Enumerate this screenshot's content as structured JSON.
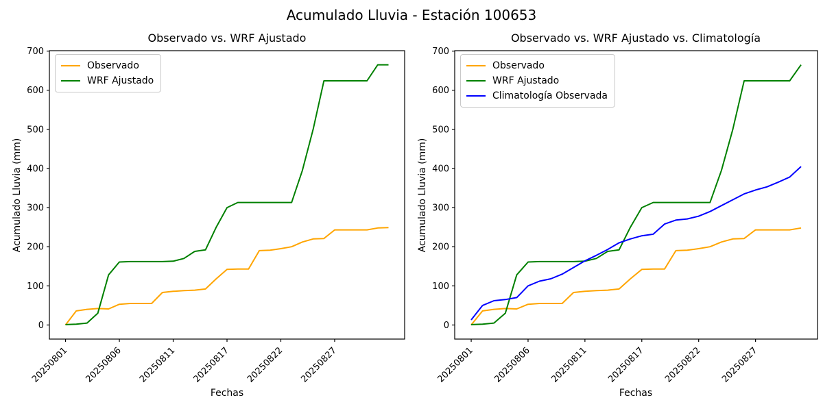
{
  "suptitle": "Acumulado Lluvia - Estación 100653",
  "chart_data": [
    {
      "type": "line",
      "title": "Observado vs. WRF Ajustado",
      "xlabel": "Fechas",
      "ylabel": "Acumulado Lluvia (mm)",
      "legend_position": "upper-left",
      "grid": false,
      "ylim": [
        -36,
        701
      ],
      "yticks": [
        0,
        100,
        200,
        300,
        400,
        500,
        600,
        700
      ],
      "xticks": {
        "indices": [
          0,
          5,
          10,
          15,
          20,
          25
        ],
        "labels": [
          "20250801",
          "20250806",
          "20250811",
          "20250817",
          "20250822",
          "20250827"
        ]
      },
      "x": [
        "20250801",
        "20250802",
        "20250803",
        "20250804",
        "20250805",
        "20250806",
        "20250807",
        "20250808",
        "20250809",
        "20250810",
        "20250811",
        "20250812",
        "20250813",
        "20250814",
        "20250815",
        "20250817",
        "20250818",
        "20250819",
        "20250820",
        "20250821",
        "20250822",
        "20250823",
        "20250824",
        "20250825",
        "20250826",
        "20250827",
        "20250828",
        "20250829",
        "20250830",
        "20250831",
        "20250901"
      ],
      "series": [
        {
          "name": "Observado",
          "color": "#FFA500",
          "values": [
            0,
            36,
            40,
            42,
            41,
            53,
            55,
            55,
            55,
            83,
            86,
            88,
            89,
            92,
            118,
            142,
            143,
            143,
            190,
            191,
            195,
            200,
            212,
            220,
            221,
            243,
            243,
            243,
            243,
            248,
            249
          ]
        },
        {
          "name": "WRF Ajustado",
          "color": "#008000",
          "values": [
            1,
            2,
            5,
            30,
            128,
            161,
            162,
            162,
            162,
            162,
            163,
            170,
            188,
            192,
            250,
            300,
            313,
            313,
            313,
            313,
            313,
            313,
            395,
            500,
            624,
            624,
            624,
            624,
            624,
            665,
            665
          ]
        }
      ]
    },
    {
      "type": "line",
      "title": "Observado vs. WRF Ajustado vs. Climatología",
      "xlabel": "Fechas",
      "ylabel": "Acumulado Lluvia (mm)",
      "legend_position": "upper-left",
      "grid": false,
      "ylim": [
        -36,
        701
      ],
      "yticks": [
        0,
        100,
        200,
        300,
        400,
        500,
        600,
        700
      ],
      "xticks": {
        "indices": [
          0,
          5,
          10,
          15,
          20,
          25
        ],
        "labels": [
          "20250801",
          "20250806",
          "20250811",
          "20250817",
          "20250822",
          "20250827"
        ]
      },
      "x": [
        "20250801",
        "20250802",
        "20250803",
        "20250804",
        "20250805",
        "20250806",
        "20250807",
        "20250808",
        "20250809",
        "20250810",
        "20250811",
        "20250812",
        "20250813",
        "20250814",
        "20250815",
        "20250817",
        "20250818",
        "20250819",
        "20250820",
        "20250821",
        "20250822",
        "20250823",
        "20250824",
        "20250825",
        "20250826",
        "20250827",
        "20250828",
        "20250829",
        "20250830",
        "20250831"
      ],
      "series": [
        {
          "name": "Observado",
          "color": "#FFA500",
          "values": [
            0,
            36,
            40,
            42,
            41,
            53,
            55,
            55,
            55,
            83,
            86,
            88,
            89,
            92,
            118,
            142,
            143,
            143,
            190,
            191,
            195,
            200,
            212,
            220,
            221,
            243,
            243,
            243,
            243,
            248
          ]
        },
        {
          "name": "WRF Ajustado",
          "color": "#008000",
          "values": [
            1,
            2,
            5,
            30,
            128,
            161,
            162,
            162,
            162,
            162,
            163,
            170,
            188,
            192,
            250,
            300,
            313,
            313,
            313,
            313,
            313,
            313,
            395,
            500,
            624,
            624,
            624,
            624,
            624,
            665
          ]
        },
        {
          "name": "Climatología Observada",
          "color": "#0000FF",
          "values": [
            13,
            50,
            62,
            65,
            70,
            100,
            112,
            118,
            130,
            147,
            164,
            178,
            193,
            210,
            220,
            228,
            232,
            258,
            268,
            271,
            278,
            290,
            305,
            320,
            335,
            345,
            353,
            365,
            378,
            405
          ]
        }
      ]
    }
  ]
}
